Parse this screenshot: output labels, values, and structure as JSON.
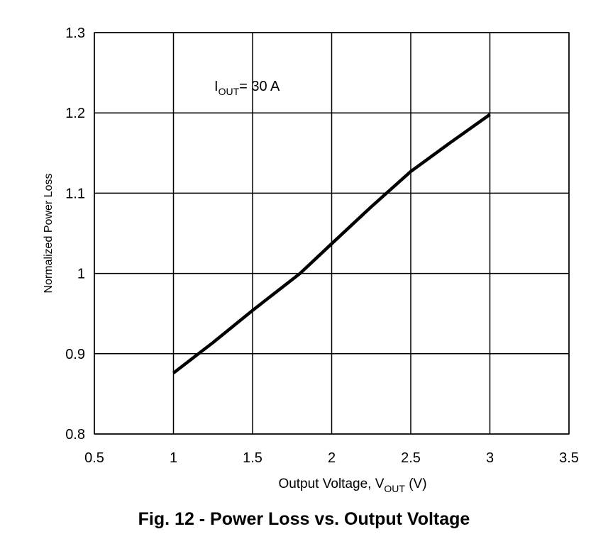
{
  "caption": "Fig. 12 - Power Loss vs. Output Voltage",
  "chart_data": {
    "type": "line",
    "title": "Fig. 12 - Power Loss vs. Output Voltage",
    "xlabel": {
      "main": "Output Voltage, V",
      "sub": "OUT",
      "suffix": " (V)"
    },
    "ylabel": "Normalized Power Loss",
    "xlim": [
      0.5,
      3.5
    ],
    "ylim": [
      0.8,
      1.3
    ],
    "x_ticks": [
      "0.5",
      "1",
      "1.5",
      "2",
      "2.5",
      "3",
      "3.5"
    ],
    "y_ticks": [
      "0.8",
      "0.9",
      "1",
      "1.1",
      "1.2",
      "1.3"
    ],
    "grid": true,
    "line_color": "#000000",
    "annotation": {
      "main": "I",
      "sub": "OUT",
      "suffix": "= 30 A"
    },
    "series": [
      {
        "x": [
          1.0,
          1.25,
          1.5,
          1.8,
          2.0,
          2.25,
          2.5,
          2.75,
          3.0
        ],
        "y": [
          0.876,
          0.914,
          0.954,
          1.0,
          1.037,
          1.083,
          1.127,
          1.163,
          1.198
        ]
      }
    ]
  }
}
